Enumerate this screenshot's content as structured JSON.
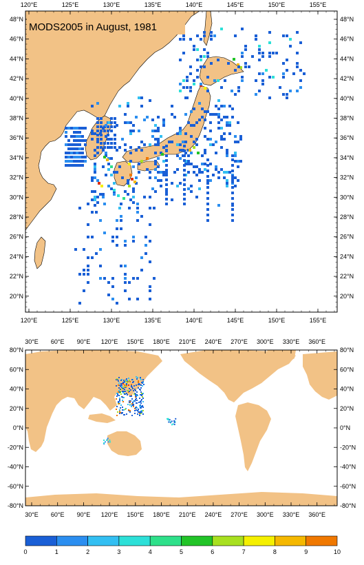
{
  "top_map": {
    "title": "MODS2005 in August, 1981",
    "lon_labels": [
      "120°E",
      "125°E",
      "130°E",
      "135°E",
      "140°E",
      "145°E",
      "150°E",
      "155°E"
    ],
    "lat_labels_left": [
      "48°N",
      "46°N",
      "44°N",
      "42°N",
      "40°N",
      "38°N",
      "36°N",
      "34°N",
      "32°N",
      "30°N",
      "28°N",
      "26°N",
      "24°N",
      "22°N",
      "20°N"
    ],
    "lat_labels_right": [
      "48°N",
      "46°N",
      "44°N",
      "42°N",
      "40°N",
      "38°N",
      "36°N",
      "34°N",
      "32°N",
      "30°N",
      "28°N",
      "26°N",
      "24°N",
      "22°N",
      "20°N"
    ]
  },
  "bottom_map": {
    "lon_labels": [
      "30°E",
      "60°E",
      "90°E",
      "120°E",
      "150°E",
      "180°E",
      "210°E",
      "240°E",
      "270°E",
      "300°E",
      "330°E",
      "360°E"
    ],
    "lat_labels": [
      "80°N",
      "60°N",
      "40°N",
      "20°N",
      "0°N",
      "-20°N",
      "-40°N",
      "-60°N",
      "-80°N"
    ]
  },
  "colorbar": {
    "labels": [
      "0",
      "1",
      "2",
      "3",
      "4",
      "5",
      "6",
      "7",
      "8",
      "9",
      "10"
    ],
    "colors": [
      "#1a5fd6",
      "#2b8ef0",
      "#33bff2",
      "#2de0d8",
      "#2ee08a",
      "#22c428",
      "#a8e020",
      "#f5f000",
      "#f5b800",
      "#f07800",
      "#e03010"
    ]
  },
  "colors": {
    "land": "#f2c286",
    "ocean": "#ffffff"
  }
}
